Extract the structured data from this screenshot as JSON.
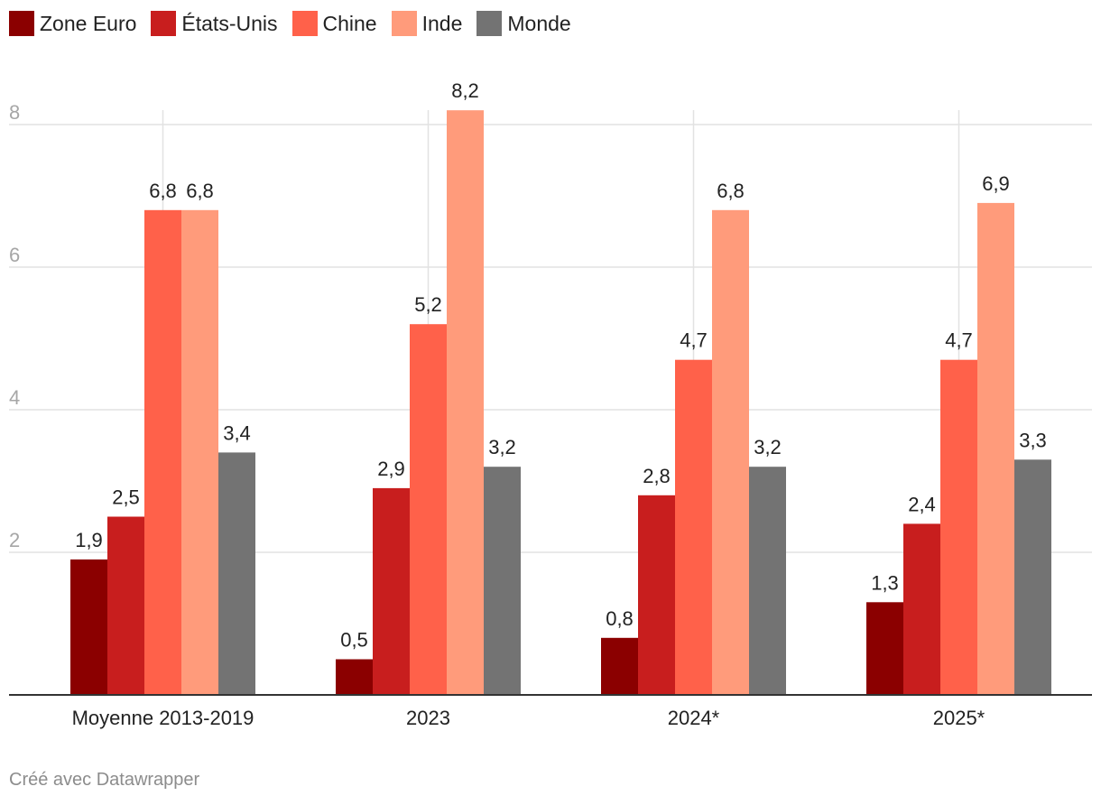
{
  "chart_data": {
    "type": "bar",
    "categories": [
      "Moyenne 2013-2019",
      "2023",
      "2024*",
      "2025*"
    ],
    "series": [
      {
        "name": "Zone Euro",
        "color": "#8b0000",
        "values": [
          1.9,
          0.5,
          0.8,
          1.3
        ]
      },
      {
        "name": "États-Unis",
        "color": "#c81e1e",
        "values": [
          2.5,
          2.9,
          2.8,
          2.4
        ]
      },
      {
        "name": "Chine",
        "color": "#ff614a",
        "values": [
          6.8,
          5.2,
          4.7,
          4.7
        ]
      },
      {
        "name": "Inde",
        "color": "#ff9b7b",
        "values": [
          6.8,
          8.2,
          6.8,
          6.9
        ]
      },
      {
        "name": "Monde",
        "color": "#737373",
        "values": [
          3.4,
          3.2,
          3.2,
          3.3
        ]
      }
    ],
    "yticks": [
      2,
      4,
      6,
      8
    ],
    "ylim": [
      0,
      8.2
    ],
    "decimal_separator": ",",
    "grid": true,
    "legend_position": "top-left"
  },
  "credit": "Créé avec Datawrapper"
}
